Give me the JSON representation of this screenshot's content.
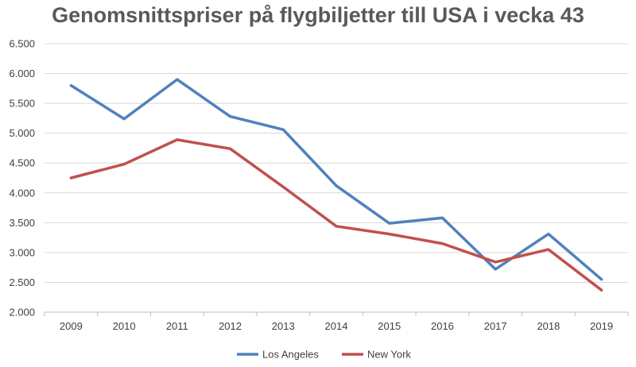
{
  "chart_data": {
    "type": "line",
    "title": "Genomsnittspriser på flygbiljetter till USA i vecka 43",
    "xlabel": "",
    "ylabel": "",
    "x": [
      "2009",
      "2010",
      "2011",
      "2012",
      "2013",
      "2014",
      "2015",
      "2016",
      "2017",
      "2018",
      "2019"
    ],
    "ylim": [
      2000,
      6500
    ],
    "yticks": [
      2000,
      2500,
      3000,
      3500,
      4000,
      4500,
      5000,
      5500,
      6000,
      6500
    ],
    "ytick_labels": [
      "2.000",
      "2.500",
      "3.000",
      "3.500",
      "4.000",
      "4.500",
      "5.000",
      "5.500",
      "6.000",
      "6.500"
    ],
    "grid": "horizontal",
    "legend": "bottom",
    "series": [
      {
        "name": "Los Angeles",
        "color": "#4f81bd",
        "values": [
          5800,
          5240,
          5900,
          5280,
          5060,
          4120,
          3490,
          3580,
          2720,
          3310,
          2550
        ]
      },
      {
        "name": "New York",
        "color": "#c0504d",
        "values": [
          4250,
          4480,
          4890,
          4740,
          4100,
          3440,
          3310,
          3150,
          2840,
          3050,
          2370
        ]
      }
    ]
  }
}
